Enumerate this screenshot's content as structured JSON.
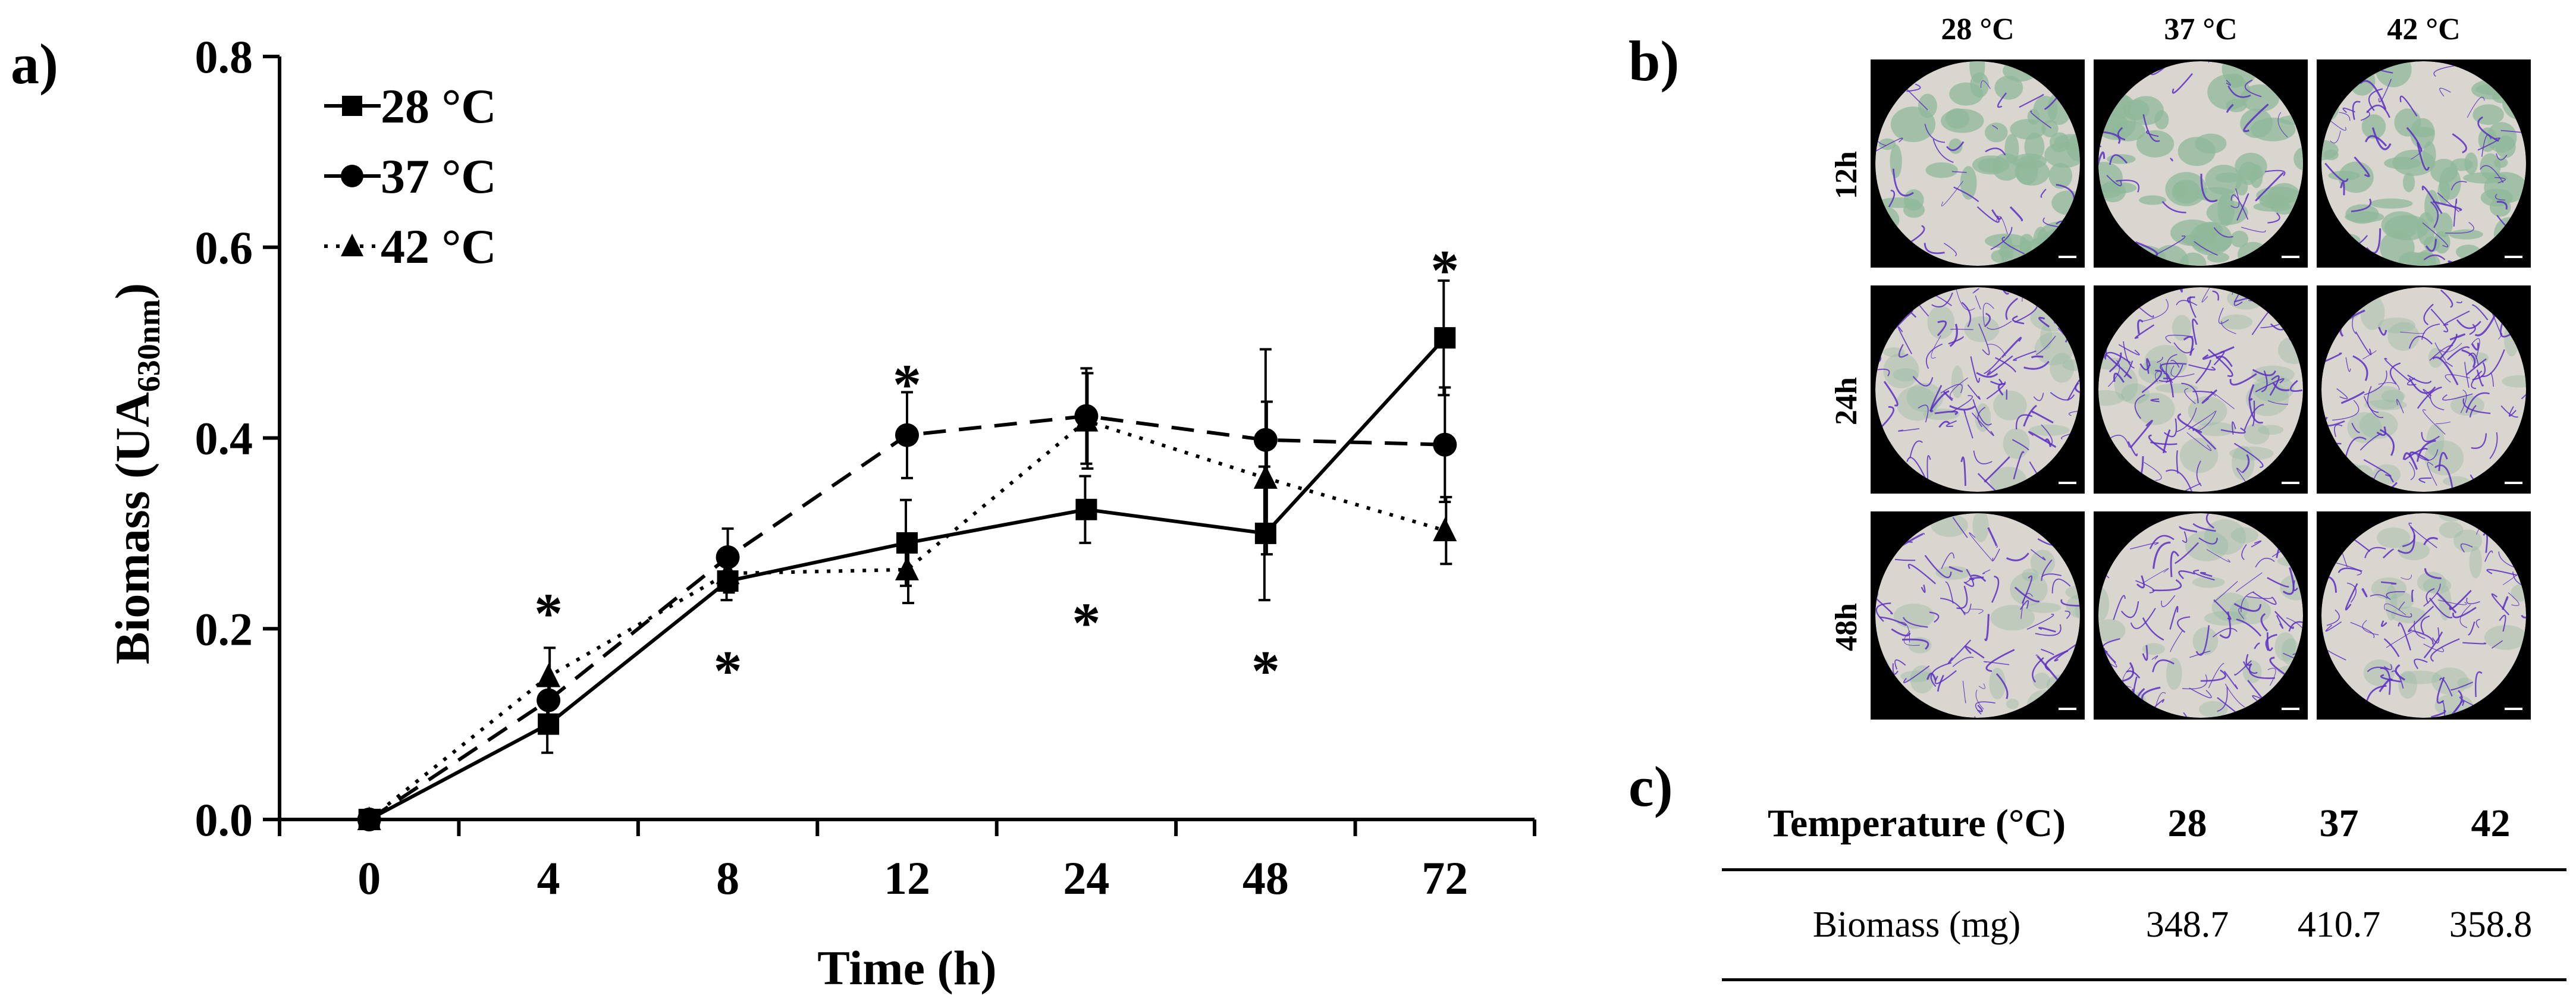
{
  "panel_labels": {
    "a": "a)",
    "b": "b)",
    "c": "c)"
  },
  "chart_data": {
    "type": "line",
    "categories": [
      "0",
      "4",
      "8",
      "12",
      "24",
      "48",
      "72"
    ],
    "xlabel": "Time (h)",
    "ylabel": "Biomass (UA",
    "ylabel_sub": "630nm",
    "ylabel_end": ")",
    "ylim": [
      0,
      0.8
    ],
    "yticks": [
      0.0,
      0.2,
      0.4,
      0.6,
      0.8
    ],
    "ytick_labels": [
      "0.0",
      "0.2",
      "0.4",
      "0.6",
      "0.8"
    ],
    "legend_position": "top-left",
    "series": [
      {
        "name": "28 °C",
        "marker": "square",
        "line": "solid",
        "values": [
          0,
          0.1,
          0.25,
          0.29,
          0.325,
          0.3,
          0.505
        ],
        "errors": [
          0,
          0.03,
          0.02,
          0.045,
          0.035,
          0.07,
          0.06
        ]
      },
      {
        "name": "37 °C",
        "marker": "circle",
        "line": "dashed",
        "values": [
          0,
          0.125,
          0.275,
          0.403,
          0.423,
          0.398,
          0.393
        ],
        "errors": [
          0,
          0.02,
          0.03,
          0.045,
          0.05,
          0.095,
          0.06
        ]
      },
      {
        "name": "42 °C",
        "marker": "triangle",
        "line": "dotted",
        "values": [
          0,
          0.15,
          0.258,
          0.262,
          0.418,
          0.358,
          0.303
        ],
        "errors": [
          0,
          0.03,
          0.02,
          0.035,
          0.05,
          0.08,
          0.035
        ]
      }
    ],
    "annotations": [
      {
        "text": "*",
        "x_index": 1,
        "y": 0.23
      },
      {
        "text": "*",
        "x_index": 2,
        "y": 0.17
      },
      {
        "text": "*",
        "x_index": 3,
        "y": 0.47
      },
      {
        "text": "*",
        "x_index": 4,
        "y": 0.22
      },
      {
        "text": "*",
        "x_index": 5,
        "y": 0.17
      },
      {
        "text": "*",
        "x_index": 6,
        "y": 0.59
      }
    ]
  },
  "micrographs": {
    "columns": [
      "28 °C",
      "37 °C",
      "42 °C"
    ],
    "rows": [
      "12h",
      "24h",
      "48h"
    ],
    "colors": {
      "background": "#000000",
      "disc": "#d9d5cf",
      "fiber": "#5a2fc2",
      "tissue": "#8fb89a"
    }
  },
  "table": {
    "header": [
      "Temperature (°C)",
      "28",
      "37",
      "42"
    ],
    "rows": [
      [
        "Biomass (mg)",
        "348.7",
        "410.7",
        "358.8"
      ]
    ]
  }
}
